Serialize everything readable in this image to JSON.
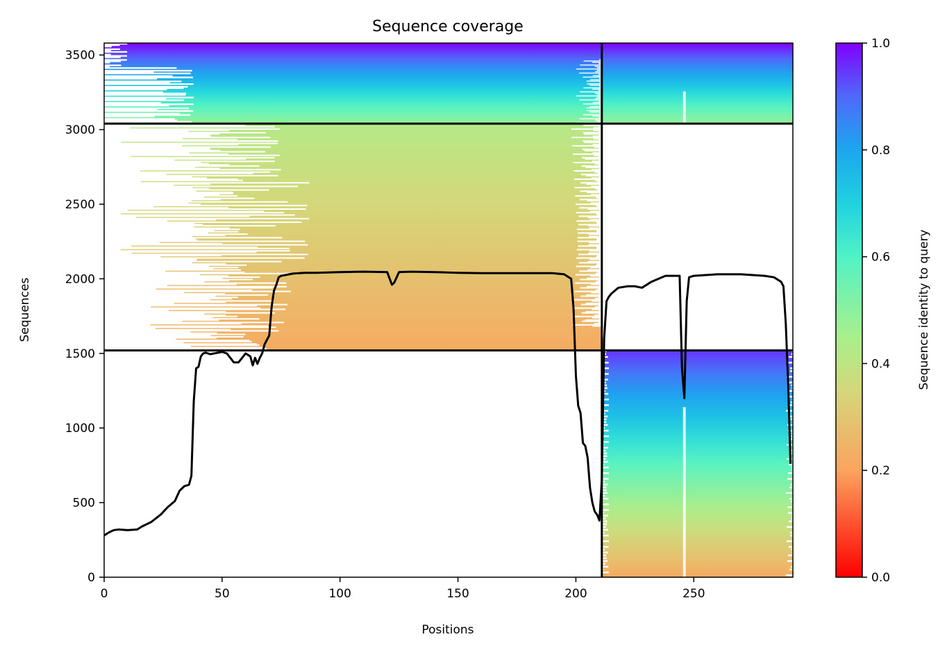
{
  "chart_data": {
    "type": "heatmap",
    "title": "Sequence coverage",
    "xlabel": "Positions",
    "ylabel": "Sequences",
    "xlim": [
      0,
      292
    ],
    "ylim": [
      0,
      3580
    ],
    "x_ticks": [
      0,
      50,
      100,
      150,
      200,
      250
    ],
    "y_ticks": [
      0,
      500,
      1000,
      1500,
      2000,
      2500,
      3000,
      3500
    ],
    "colorbar": {
      "label": "Sequence identity to query",
      "colormap": "rainbow_r",
      "range": [
        0,
        1
      ],
      "ticks": [
        0.0,
        0.2,
        0.4,
        0.6,
        0.8,
        1.0
      ],
      "tick_labels": [
        "0.0",
        "0.2",
        "0.4",
        "0.6",
        "0.8",
        "1.0"
      ],
      "stops": [
        {
          "value": 0.0,
          "color": "#ff0000"
        },
        {
          "value": 0.2,
          "color": "#fba45e"
        },
        {
          "value": 0.35,
          "color": "#d4d77a"
        },
        {
          "value": 0.45,
          "color": "#a8f08c"
        },
        {
          "value": 0.6,
          "color": "#50f3c6"
        },
        {
          "value": 0.7,
          "color": "#20d2e0"
        },
        {
          "value": 0.8,
          "color": "#1ca6ee"
        },
        {
          "value": 0.9,
          "color": "#4f69fb"
        },
        {
          "value": 1.0,
          "color": "#8000ff"
        }
      ]
    },
    "boundary_lines": {
      "horizontal": [
        1520,
        3040
      ],
      "vertical": [
        211
      ]
    },
    "blocks": [
      {
        "name": "block-lower-right",
        "x_range": [
          211,
          292
        ],
        "y_range": [
          0,
          1520
        ],
        "identity_bottom": 0.22,
        "identity_top": 0.95,
        "gap_column": 246
      },
      {
        "name": "block-middle-left",
        "x_range": [
          0,
          211
        ],
        "y_range": [
          1520,
          3040
        ],
        "identity_bottom": 0.22,
        "identity_top": 0.42,
        "cap_identity": 0.8
      },
      {
        "name": "block-top-left",
        "x_range": [
          0,
          211
        ],
        "y_range": [
          3040,
          3580
        ],
        "identity_bottom": 0.48,
        "identity_top": 1.0
      },
      {
        "name": "block-top-right",
        "x_range": [
          211,
          292
        ],
        "y_range": [
          3040,
          3580
        ],
        "identity_bottom": 0.48,
        "identity_top": 1.0,
        "gap_column": 246
      }
    ],
    "series": [
      {
        "name": "coverage",
        "color": "#000000",
        "x": [
          0,
          2,
          4,
          6,
          10,
          14,
          16,
          20,
          24,
          27,
          30,
          32,
          34,
          36,
          37,
          38,
          39,
          40,
          41,
          42,
          43,
          45,
          50,
          52,
          55,
          57,
          60,
          62,
          63,
          64,
          65,
          66,
          67,
          68,
          70,
          71,
          72,
          73,
          74,
          75,
          80,
          85,
          90,
          100,
          110,
          120,
          122,
          123,
          125,
          130,
          140,
          150,
          160,
          170,
          180,
          190,
          195,
          198,
          199,
          200,
          201,
          202,
          203,
          204,
          205,
          206,
          207,
          208,
          209,
          210,
          211,
          212,
          213,
          214,
          215,
          218,
          222,
          225,
          228,
          232,
          235,
          238,
          240,
          242,
          244,
          245,
          246,
          247,
          248,
          250,
          255,
          260,
          265,
          270,
          275,
          280,
          284,
          287,
          288,
          289,
          290,
          291
        ],
        "y": [
          280,
          300,
          315,
          320,
          315,
          320,
          340,
          370,
          420,
          470,
          510,
          580,
          610,
          620,
          680,
          1180,
          1400,
          1410,
          1480,
          1500,
          1505,
          1495,
          1510,
          1500,
          1440,
          1440,
          1500,
          1480,
          1420,
          1470,
          1430,
          1470,
          1500,
          1560,
          1620,
          1810,
          1920,
          1960,
          2010,
          2020,
          2035,
          2040,
          2040,
          2045,
          2048,
          2045,
          1960,
          1975,
          2045,
          2048,
          2045,
          2040,
          2038,
          2038,
          2038,
          2038,
          2030,
          2000,
          1800,
          1350,
          1150,
          1100,
          900,
          880,
          800,
          600,
          500,
          440,
          420,
          380,
          650,
          1600,
          1850,
          1880,
          1900,
          1940,
          1950,
          1950,
          1940,
          1980,
          2000,
          2020,
          2020,
          2020,
          2020,
          1400,
          1200,
          1850,
          2010,
          2020,
          2025,
          2030,
          2030,
          2030,
          2025,
          2020,
          2010,
          1980,
          1950,
          1700,
          1300,
          760
        ]
      }
    ]
  }
}
